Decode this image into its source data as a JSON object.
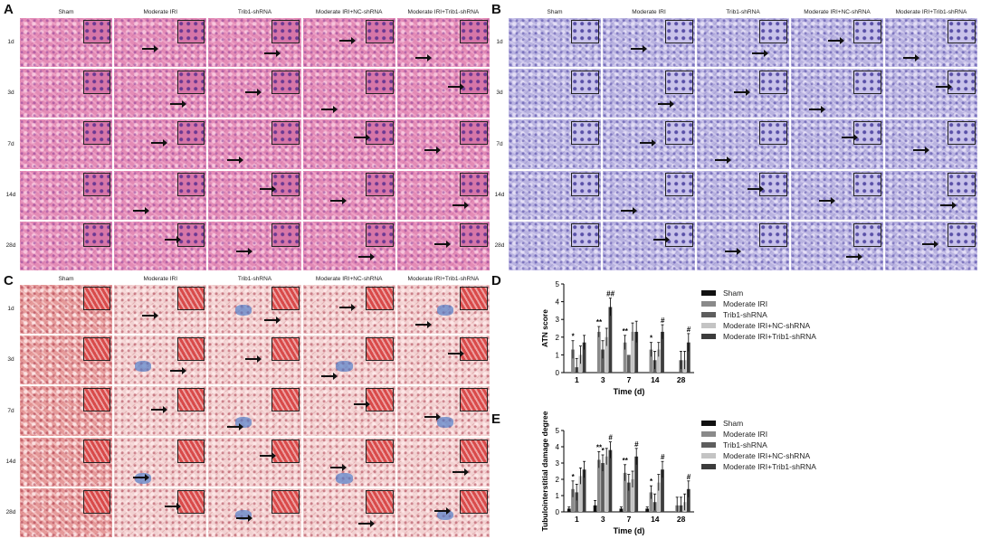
{
  "figure": {
    "panels": {
      "A": {
        "letter": "A"
      },
      "B": {
        "letter": "B"
      },
      "C": {
        "letter": "C"
      },
      "D": {
        "letter": "D"
      },
      "E": {
        "letter": "E"
      }
    },
    "columns": [
      "Sham",
      "Moderate IRI",
      "Trib1-shRNA",
      "Moderate IRI+NC-shRNA",
      "Moderate IRI+Trib1-shRNA"
    ],
    "rows": [
      "1d",
      "3d",
      "7d",
      "14d",
      "28d"
    ],
    "stains": {
      "A": "he",
      "B": "pas",
      "C": "masson"
    },
    "colors": {
      "sham": "#111111",
      "iri": "#8a8a8a",
      "trib1": "#5e5e5e",
      "nc": "#c4c4c4",
      "iri_trib1": "#3c3c3c"
    }
  },
  "chart_data": [
    {
      "panel": "D",
      "type": "bar",
      "categories": [
        "1",
        "3",
        "7",
        "14",
        "28"
      ],
      "xlabel": "Time (d)",
      "ylabel": "ATN score",
      "ylim": [
        0,
        5
      ],
      "yticks": [
        "0",
        "1",
        "2",
        "3",
        "4",
        "5"
      ],
      "legend_position": "right",
      "series": [
        {
          "name": "Sham",
          "values": [
            0,
            0,
            0,
            0,
            0
          ],
          "err": [
            0,
            0,
            0,
            0,
            0
          ]
        },
        {
          "name": "Moderate IRI",
          "values": [
            1.3,
            2.3,
            1.7,
            1.3,
            0
          ],
          "err": [
            0.5,
            0.3,
            0.4,
            0.4,
            0
          ]
        },
        {
          "name": "Trib1-shRNA",
          "values": [
            0.3,
            1.3,
            1.0,
            0.7,
            0.7
          ],
          "err": [
            0.5,
            0.5,
            0.0,
            0.5,
            0.5
          ]
        },
        {
          "name": "Moderate IRI+NC-shRNA",
          "values": [
            1.0,
            2.0,
            2.3,
            1.3,
            0.7
          ],
          "err": [
            0.5,
            0.5,
            0.5,
            0.4,
            0.5
          ]
        },
        {
          "name": "Moderate IRI+Trib1-shRNA",
          "values": [
            1.7,
            3.7,
            2.3,
            2.3,
            1.7
          ],
          "err": [
            0.4,
            0.5,
            0.6,
            0.4,
            0.5
          ]
        }
      ],
      "annotations": [
        {
          "category": "1",
          "series": 1,
          "text": "*"
        },
        {
          "category": "3",
          "series": 1,
          "text": "**"
        },
        {
          "category": "3",
          "series": 4,
          "text": "##"
        },
        {
          "category": "7",
          "series": 1,
          "text": "**"
        },
        {
          "category": "14",
          "series": 1,
          "text": "*"
        },
        {
          "category": "14",
          "series": 4,
          "text": "#"
        },
        {
          "category": "28",
          "series": 4,
          "text": "#"
        }
      ]
    },
    {
      "panel": "E",
      "type": "bar",
      "categories": [
        "1",
        "3",
        "7",
        "14",
        "28"
      ],
      "xlabel": "Time (d)",
      "ylabel": "Tubulointerstitial damage degree",
      "ylim": [
        0,
        5
      ],
      "yticks": [
        "0",
        "1",
        "2",
        "3",
        "4",
        "5"
      ],
      "legend_position": "right",
      "series": [
        {
          "name": "Sham",
          "values": [
            0.2,
            0.4,
            0.2,
            0.2,
            0
          ],
          "err": [
            0.1,
            0.3,
            0.1,
            0.1,
            0
          ]
        },
        {
          "name": "Moderate IRI",
          "values": [
            1.4,
            3.2,
            2.4,
            1.2,
            0.4
          ],
          "err": [
            0.5,
            0.5,
            0.5,
            0.4,
            0.5
          ]
        },
        {
          "name": "Trib1-shRNA",
          "values": [
            1.2,
            3.0,
            1.8,
            0.6,
            0.4
          ],
          "err": [
            0.5,
            0.5,
            0.5,
            0.5,
            0.5
          ]
        },
        {
          "name": "Moderate IRI+NC-shRNA",
          "values": [
            2.2,
            3.4,
            2.0,
            1.8,
            0.6
          ],
          "err": [
            0.5,
            0.5,
            0.5,
            0.5,
            0.5
          ]
        },
        {
          "name": "Moderate IRI+Trib1-shRNA",
          "values": [
            2.6,
            3.8,
            3.4,
            2.6,
            1.4
          ],
          "err": [
            0.5,
            0.5,
            0.5,
            0.5,
            0.5
          ]
        }
      ],
      "annotations": [
        {
          "category": "1",
          "series": 1,
          "text": "*"
        },
        {
          "category": "3",
          "series": 1,
          "text": "**"
        },
        {
          "category": "3",
          "series": 2,
          "text": "*"
        },
        {
          "category": "3",
          "series": 4,
          "text": "#"
        },
        {
          "category": "7",
          "series": 1,
          "text": "**"
        },
        {
          "category": "7",
          "series": 4,
          "text": "#"
        },
        {
          "category": "14",
          "series": 1,
          "text": "*"
        },
        {
          "category": "14",
          "series": 4,
          "text": "#"
        },
        {
          "category": "28",
          "series": 4,
          "text": "#"
        }
      ]
    }
  ]
}
